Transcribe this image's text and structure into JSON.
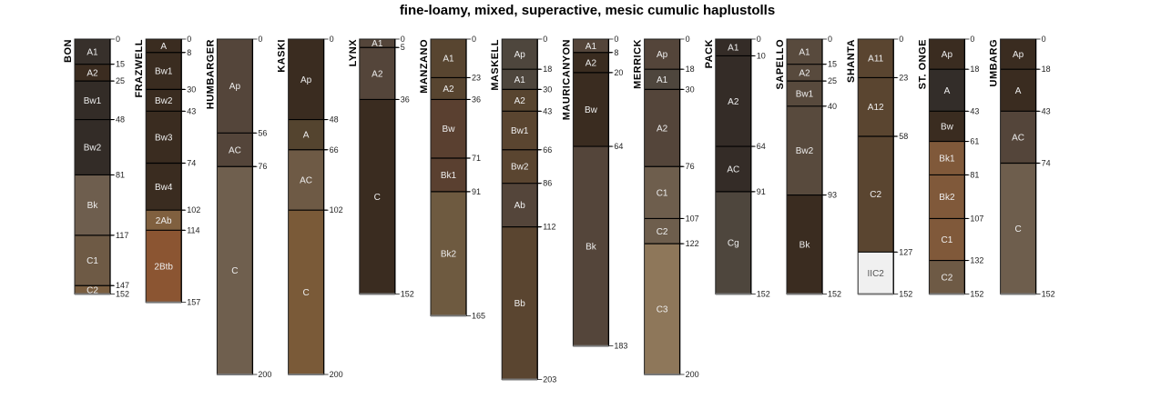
{
  "chart_data": {
    "type": "soil-profile-sketch",
    "title": "fine-loamy, mixed, superactive, mesic cumulic haplustolls",
    "depth_units": "cm",
    "depth_range": [
      0,
      203
    ],
    "profiles": [
      {
        "name": "BON",
        "horizons": [
          {
            "name": "A1",
            "top": 0,
            "bottom": 15,
            "color": "#37302b"
          },
          {
            "name": "A2",
            "top": 15,
            "bottom": 25,
            "color": "#3b2c20"
          },
          {
            "name": "Bw1",
            "top": 25,
            "bottom": 48,
            "color": "#332c27"
          },
          {
            "name": "Bw2",
            "top": 48,
            "bottom": 81,
            "color": "#332c27"
          },
          {
            "name": "Bk",
            "top": 81,
            "bottom": 117,
            "color": "#6e5e4e"
          },
          {
            "name": "C1",
            "top": 117,
            "bottom": 147,
            "color": "#6e5a45"
          },
          {
            "name": "C2",
            "top": 147,
            "bottom": 152,
            "color": "#7a5e40"
          }
        ]
      },
      {
        "name": "FRAZWELL",
        "horizons": [
          {
            "name": "A",
            "top": 0,
            "bottom": 8,
            "color": "#3a2c20"
          },
          {
            "name": "Bw1",
            "top": 8,
            "bottom": 30,
            "color": "#3a2c20"
          },
          {
            "name": "Bw2",
            "top": 30,
            "bottom": 43,
            "color": "#3a2c20"
          },
          {
            "name": "Bw3",
            "top": 43,
            "bottom": 74,
            "color": "#3a2c20"
          },
          {
            "name": "Bw4",
            "top": 74,
            "bottom": 102,
            "color": "#3a2c20"
          },
          {
            "name": "2Ab",
            "top": 102,
            "bottom": 114,
            "color": "#80603f"
          },
          {
            "name": "2Btb",
            "top": 114,
            "bottom": 157,
            "color": "#8b5532"
          }
        ]
      },
      {
        "name": "HUMBARGER",
        "horizons": [
          {
            "name": "Ap",
            "top": 0,
            "bottom": 56,
            "color": "#54453a"
          },
          {
            "name": "AC",
            "top": 56,
            "bottom": 76,
            "color": "#54453a"
          },
          {
            "name": "C",
            "top": 76,
            "bottom": 200,
            "color": "#6f5f4e"
          }
        ]
      },
      {
        "name": "KASKI",
        "horizons": [
          {
            "name": "Ap",
            "top": 0,
            "bottom": 48,
            "color": "#3a2c20"
          },
          {
            "name": "A",
            "top": 48,
            "bottom": 66,
            "color": "#54442f"
          },
          {
            "name": "AC",
            "top": 66,
            "bottom": 102,
            "color": "#6e5a45"
          },
          {
            "name": "C",
            "top": 102,
            "bottom": 200,
            "color": "#7a5a38"
          }
        ]
      },
      {
        "name": "LYNX",
        "horizons": [
          {
            "name": "A1",
            "top": 0,
            "bottom": 5,
            "color": "#54453a"
          },
          {
            "name": "A2",
            "top": 5,
            "bottom": 36,
            "color": "#54453a"
          },
          {
            "name": "C",
            "top": 36,
            "bottom": 152,
            "color": "#3a2c20"
          }
        ]
      },
      {
        "name": "MANZANO",
        "horizons": [
          {
            "name": "A1",
            "top": 0,
            "bottom": 23,
            "color": "#584530"
          },
          {
            "name": "A2",
            "top": 23,
            "bottom": 36,
            "color": "#584530"
          },
          {
            "name": "Bw",
            "top": 36,
            "bottom": 71,
            "color": "#5a4030"
          },
          {
            "name": "Bk1",
            "top": 71,
            "bottom": 91,
            "color": "#5a4030"
          },
          {
            "name": "Bk2",
            "top": 91,
            "bottom": 165,
            "color": "#6e5a40"
          }
        ]
      },
      {
        "name": "MASKELL",
        "horizons": [
          {
            "name": "Ap",
            "top": 0,
            "bottom": 18,
            "color": "#4e463d"
          },
          {
            "name": "A1",
            "top": 18,
            "bottom": 30,
            "color": "#4e463d"
          },
          {
            "name": "A2",
            "top": 30,
            "bottom": 43,
            "color": "#584530"
          },
          {
            "name": "Bw1",
            "top": 43,
            "bottom": 66,
            "color": "#5a4530"
          },
          {
            "name": "Bw2",
            "top": 66,
            "bottom": 86,
            "color": "#5a4530"
          },
          {
            "name": "Ab",
            "top": 86,
            "bottom": 112,
            "color": "#54453a"
          },
          {
            "name": "Bb",
            "top": 112,
            "bottom": 203,
            "color": "#5a4530"
          }
        ]
      },
      {
        "name": "MAURICANYON",
        "horizons": [
          {
            "name": "A1",
            "top": 0,
            "bottom": 8,
            "color": "#54453a"
          },
          {
            "name": "A2",
            "top": 8,
            "bottom": 20,
            "color": "#3a2c20"
          },
          {
            "name": "Bw",
            "top": 20,
            "bottom": 64,
            "color": "#3a2c20"
          },
          {
            "name": "Bk",
            "top": 64,
            "bottom": 183,
            "color": "#54453a"
          }
        ]
      },
      {
        "name": "MERRICK",
        "horizons": [
          {
            "name": "Ap",
            "top": 0,
            "bottom": 18,
            "color": "#54453a"
          },
          {
            "name": "A1",
            "top": 18,
            "bottom": 30,
            "color": "#4e463d"
          },
          {
            "name": "A2",
            "top": 30,
            "bottom": 76,
            "color": "#54453a"
          },
          {
            "name": "C1",
            "top": 76,
            "bottom": 107,
            "color": "#6e5e4d"
          },
          {
            "name": "C2",
            "top": 107,
            "bottom": 122,
            "color": "#6e5e4d"
          },
          {
            "name": "C3",
            "top": 122,
            "bottom": 200,
            "color": "#8e775a"
          }
        ]
      },
      {
        "name": "PACK",
        "horizons": [
          {
            "name": "A1",
            "top": 0,
            "bottom": 10,
            "color": "#342c27"
          },
          {
            "name": "A2",
            "top": 10,
            "bottom": 64,
            "color": "#342c27"
          },
          {
            "name": "AC",
            "top": 64,
            "bottom": 91,
            "color": "#342c27"
          },
          {
            "name": "Cg",
            "top": 91,
            "bottom": 152,
            "color": "#4e463d"
          }
        ]
      },
      {
        "name": "SAPELLO",
        "horizons": [
          {
            "name": "A1",
            "top": 0,
            "bottom": 15,
            "color": "#584a3d"
          },
          {
            "name": "A2",
            "top": 15,
            "bottom": 25,
            "color": "#584a3d"
          },
          {
            "name": "Bw1",
            "top": 25,
            "bottom": 40,
            "color": "#584a3d"
          },
          {
            "name": "Bw2",
            "top": 40,
            "bottom": 93,
            "color": "#584a3d"
          },
          {
            "name": "Bk",
            "top": 93,
            "bottom": 152,
            "color": "#3a2c20"
          }
        ]
      },
      {
        "name": "SHANTA",
        "horizons": [
          {
            "name": "A11",
            "top": 0,
            "bottom": 23,
            "color": "#5a4530"
          },
          {
            "name": "A12",
            "top": 23,
            "bottom": 58,
            "color": "#5a4530"
          },
          {
            "name": "C2",
            "top": 58,
            "bottom": 127,
            "color": "#5a4530"
          },
          {
            "name": "IIC2",
            "top": 127,
            "bottom": 152,
            "color": "#f0f0f0"
          }
        ]
      },
      {
        "name": "ST. ONGE",
        "horizons": [
          {
            "name": "Ap",
            "top": 0,
            "bottom": 18,
            "color": "#3a2c20"
          },
          {
            "name": "A",
            "top": 18,
            "bottom": 43,
            "color": "#332d29"
          },
          {
            "name": "Bw",
            "top": 43,
            "bottom": 61,
            "color": "#3a2c20"
          },
          {
            "name": "Bk1",
            "top": 61,
            "bottom": 81,
            "color": "#80593a"
          },
          {
            "name": "Bk2",
            "top": 81,
            "bottom": 107,
            "color": "#80593a"
          },
          {
            "name": "C1",
            "top": 107,
            "bottom": 132,
            "color": "#80593a"
          },
          {
            "name": "C2",
            "top": 132,
            "bottom": 152,
            "color": "#6e5a45"
          }
        ]
      },
      {
        "name": "UMBARG",
        "horizons": [
          {
            "name": "Ap",
            "top": 0,
            "bottom": 18,
            "color": "#3a2c20"
          },
          {
            "name": "A",
            "top": 18,
            "bottom": 43,
            "color": "#3a2c20"
          },
          {
            "name": "AC",
            "top": 43,
            "bottom": 74,
            "color": "#54453a"
          },
          {
            "name": "C",
            "top": 74,
            "bottom": 152,
            "color": "#6e5e4d"
          }
        ]
      }
    ]
  }
}
